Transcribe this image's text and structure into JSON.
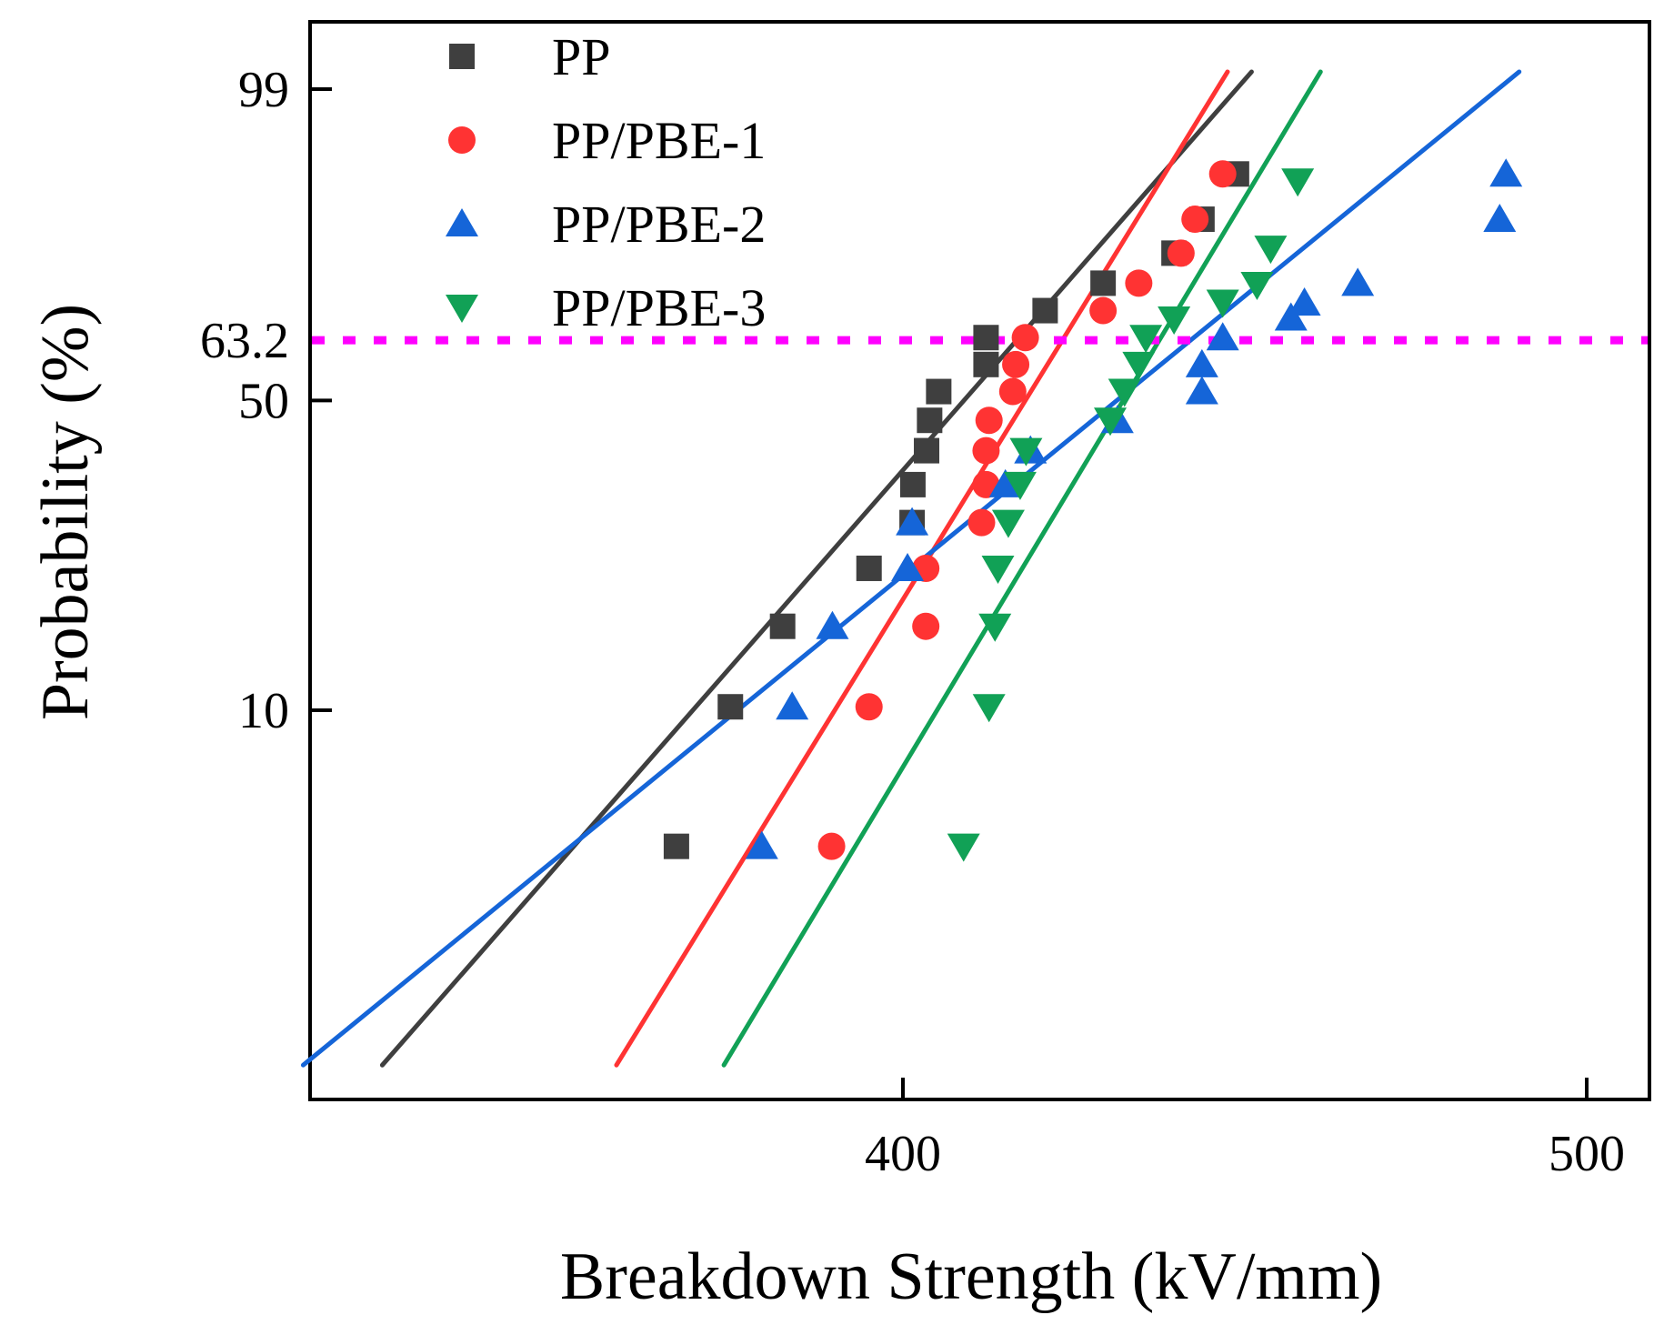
{
  "chart_data": {
    "type": "scatter",
    "subtype": "weibull-probability-plot",
    "title": "",
    "xlabel": "Breakdown Strength (kV/mm)",
    "ylabel": "Probability (%)",
    "xscale": "log",
    "yscale": "weibull",
    "xlim": [
      328,
      509
    ],
    "ylim_percent": [
      0.9,
      99.99
    ],
    "xticks": [
      "400",
      "500"
    ],
    "yticks": [
      "10",
      "50",
      "63.2",
      "99"
    ],
    "reference_line": {
      "y": 63.2,
      "color": "#ff00ff",
      "style": "dotted"
    },
    "grid": false,
    "legend_position": "top-left",
    "series": [
      {
        "name": "PP",
        "marker": "square",
        "color": "#3f3f3f",
        "points": [
          {
            "x": 371.5,
            "y": 4.5
          },
          {
            "x": 378.1,
            "y": 10.2
          },
          {
            "x": 384.6,
            "y": 16.1
          },
          {
            "x": 395.6,
            "y": 22.1
          },
          {
            "x": 401.2,
            "y": 28.1
          },
          {
            "x": 401.3,
            "y": 34.0
          },
          {
            "x": 403.1,
            "y": 40.0
          },
          {
            "x": 403.5,
            "y": 45.9
          },
          {
            "x": 404.7,
            "y": 51.9
          },
          {
            "x": 411.0,
            "y": 57.8
          },
          {
            "x": 411.0,
            "y": 63.8
          },
          {
            "x": 419.0,
            "y": 69.8
          },
          {
            "x": 427.0,
            "y": 75.7
          },
          {
            "x": 437.0,
            "y": 81.7
          },
          {
            "x": 441.0,
            "y": 87.6
          },
          {
            "x": 446.0,
            "y": 93.6
          }
        ],
        "fit": {
          "x": [
            337.5,
            448.2
          ],
          "y": [
            1.21,
            99.4
          ]
        }
      },
      {
        "name": "PP/PBE-1",
        "marker": "circle",
        "color": "#ff3333",
        "points": [
          {
            "x": 390.8,
            "y": 4.5
          },
          {
            "x": 395.6,
            "y": 10.2
          },
          {
            "x": 403.0,
            "y": 16.1
          },
          {
            "x": 403.0,
            "y": 22.1
          },
          {
            "x": 410.4,
            "y": 28.1
          },
          {
            "x": 411.0,
            "y": 34.0
          },
          {
            "x": 411.0,
            "y": 40.0
          },
          {
            "x": 411.4,
            "y": 45.9
          },
          {
            "x": 414.6,
            "y": 51.9
          },
          {
            "x": 415.0,
            "y": 57.8
          },
          {
            "x": 416.3,
            "y": 63.8
          },
          {
            "x": 427.0,
            "y": 69.8
          },
          {
            "x": 432.0,
            "y": 75.7
          },
          {
            "x": 438.0,
            "y": 81.7
          },
          {
            "x": 440.0,
            "y": 87.6
          },
          {
            "x": 444.0,
            "y": 93.6
          }
        ],
        "fit": {
          "x": [
            364.3,
            444.7
          ],
          "y": [
            1.21,
            99.4
          ]
        }
      },
      {
        "name": "PP/PBE-2",
        "marker": "triangle-up",
        "color": "#1565d8",
        "points": [
          {
            "x": 382.0,
            "y": 4.5
          },
          {
            "x": 385.8,
            "y": 10.2
          },
          {
            "x": 390.9,
            "y": 16.1
          },
          {
            "x": 400.6,
            "y": 22.1
          },
          {
            "x": 401.2,
            "y": 28.1
          },
          {
            "x": 413.6,
            "y": 34.0
          },
          {
            "x": 417.0,
            "y": 40.0
          },
          {
            "x": 429.0,
            "y": 45.9
          },
          {
            "x": 441.0,
            "y": 51.9
          },
          {
            "x": 441.0,
            "y": 57.8
          },
          {
            "x": 444.0,
            "y": 63.8
          },
          {
            "x": 454.0,
            "y": 68.2
          },
          {
            "x": 456.0,
            "y": 71.5
          },
          {
            "x": 464.0,
            "y": 75.7
          },
          {
            "x": 486.0,
            "y": 87.6
          },
          {
            "x": 487.0,
            "y": 93.6
          }
        ],
        "fit": {
          "x": [
            328.9,
            489.1
          ],
          "y": [
            1.21,
            99.4
          ]
        }
      },
      {
        "name": "PP/PBE-3",
        "marker": "triangle-down",
        "color": "#11a156",
        "points": [
          {
            "x": 408.0,
            "y": 4.5
          },
          {
            "x": 411.4,
            "y": 10.2
          },
          {
            "x": 412.2,
            "y": 16.1
          },
          {
            "x": 412.6,
            "y": 22.1
          },
          {
            "x": 414.0,
            "y": 28.1
          },
          {
            "x": 415.6,
            "y": 34.0
          },
          {
            "x": 416.4,
            "y": 40.0
          },
          {
            "x": 428.0,
            "y": 45.9
          },
          {
            "x": 430.0,
            "y": 51.9
          },
          {
            "x": 432.0,
            "y": 57.8
          },
          {
            "x": 433.0,
            "y": 63.8
          },
          {
            "x": 437.0,
            "y": 67.9
          },
          {
            "x": 444.0,
            "y": 71.6
          },
          {
            "x": 449.0,
            "y": 75.4
          },
          {
            "x": 451.0,
            "y": 82.6
          },
          {
            "x": 455.0,
            "y": 92.8
          }
        ],
        "fit": {
          "x": [
            377.3,
            458.4
          ],
          "y": [
            1.21,
            99.4
          ]
        }
      }
    ]
  }
}
